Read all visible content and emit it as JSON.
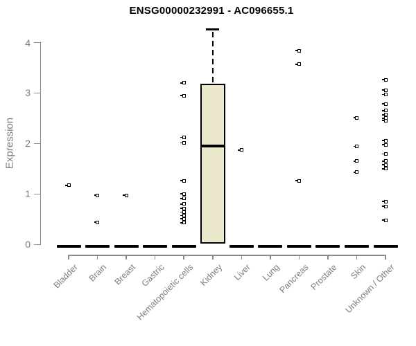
{
  "title": "ENSG00000232991 - AC096655.1",
  "chart_data": {
    "type": "boxplot",
    "title": "ENSG00000232991 - AC096655.1",
    "xlabel": "",
    "ylabel": "Expression",
    "ylim": [
      0,
      4.3
    ],
    "yticks": [
      0,
      1,
      2,
      3,
      4
    ],
    "grid": false,
    "legend": null,
    "colors": {
      "box_fill": "#ece8cc",
      "box_border": "#000000",
      "point": "#000000",
      "axis": "#8a8a8a",
      "tick_label": "#7d7d7d",
      "title": "#000000"
    },
    "categories": [
      "Bladder",
      "Brain",
      "Breast",
      "Gastric",
      "Hematopoietic cells",
      "Kidney",
      "Liver",
      "Lung",
      "Pancreas",
      "Prostate",
      "Skin",
      "Unknown / Other"
    ],
    "groups": [
      {
        "category": "Bladder",
        "zero_bar": true,
        "points": [
          1.17
        ],
        "box": null
      },
      {
        "category": "Brain",
        "zero_bar": true,
        "points": [
          0.97,
          0.44
        ],
        "box": null
      },
      {
        "category": "Breast",
        "zero_bar": true,
        "points": [
          0.97
        ],
        "box": null
      },
      {
        "category": "Gastric",
        "zero_bar": true,
        "points": [],
        "box": null
      },
      {
        "category": "Hematopoietic cells",
        "zero_bar": true,
        "points": [
          3.2,
          2.95,
          2.12,
          2.01,
          1.26,
          1.0,
          0.91,
          0.8,
          0.71,
          0.64,
          0.57,
          0.51,
          0.43
        ],
        "box": null
      },
      {
        "category": "Kidney",
        "zero_bar": false,
        "points": [],
        "box": {
          "whisker_high": 4.26,
          "q3": 3.19,
          "median": 1.98,
          "q1": 0.02,
          "whisker_low": 0.02
        }
      },
      {
        "category": "Liver",
        "zero_bar": true,
        "points": [
          1.87
        ],
        "box": null
      },
      {
        "category": "Lung",
        "zero_bar": true,
        "points": [],
        "box": null
      },
      {
        "category": "Pancreas",
        "zero_bar": true,
        "points": [
          3.84,
          3.57,
          1.26
        ],
        "box": null
      },
      {
        "category": "Prostate",
        "zero_bar": true,
        "points": [],
        "box": null
      },
      {
        "category": "Skin",
        "zero_bar": true,
        "points": [
          2.51,
          1.94,
          1.65,
          1.43
        ],
        "box": null
      },
      {
        "category": "Unknown / Other",
        "zero_bar": true,
        "points": [
          3.26,
          3.06,
          2.97,
          2.78,
          2.65,
          2.57,
          2.5,
          2.45,
          2.06,
          1.97,
          1.79,
          1.65,
          1.58,
          1.5,
          0.85,
          0.75,
          0.48
        ],
        "box": null
      }
    ]
  }
}
